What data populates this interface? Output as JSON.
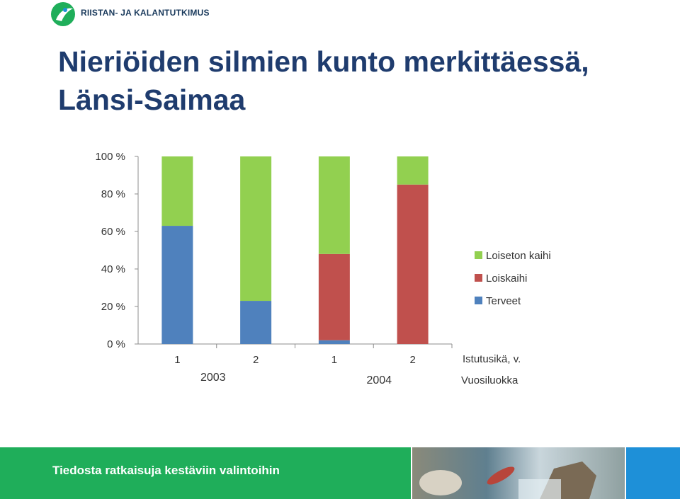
{
  "header": {
    "logo_text": "RIISTAN- JA KALANTUTKIMUS",
    "title_line1": "Nieriöiden silmien kunto merkittäessä,",
    "title_line2": "Länsi-Saimaa"
  },
  "footer": {
    "tagline": "Tiedosta ratkaisuja kestäviin valintoihin"
  },
  "chart_data": {
    "type": "bar",
    "stacked": true,
    "categories": [
      "1",
      "2",
      "1",
      "2"
    ],
    "groups": [
      {
        "label": "2003",
        "categories": [
          0,
          1
        ]
      },
      {
        "label": "2004",
        "categories": [
          2,
          3
        ]
      }
    ],
    "x_tick_title": "Istutusikä, v.",
    "x_group_title": "Vuosiluokka",
    "y_ticks": [
      "0 %",
      "20 %",
      "40 %",
      "60 %",
      "80 %",
      "100 %"
    ],
    "ylim": [
      0,
      100
    ],
    "grid": false,
    "legend_position": "right",
    "series": [
      {
        "name": "Terveet",
        "values": [
          63,
          23,
          2,
          0
        ],
        "color": "#4f81bd"
      },
      {
        "name": "Loiskaihi",
        "values": [
          0,
          0,
          46,
          85
        ],
        "color": "#c0504d"
      },
      {
        "name": "Loiseton kaihi",
        "values": [
          37,
          77,
          52,
          15
        ],
        "color": "#92d050"
      }
    ]
  }
}
